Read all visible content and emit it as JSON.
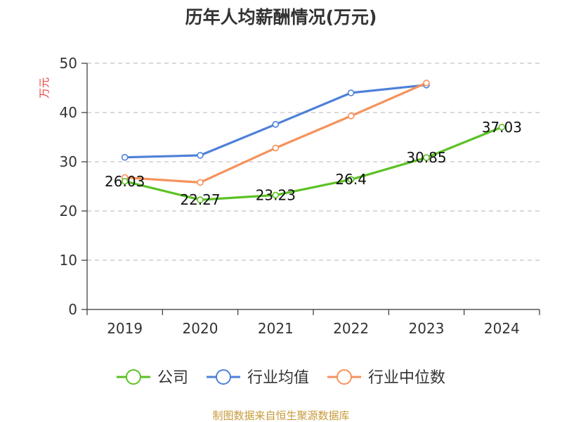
{
  "chart_data": {
    "type": "line",
    "title": "历年人均薪酬情况(万元)",
    "ylabel": "万元",
    "categories": [
      "2019",
      "2020",
      "2021",
      "2022",
      "2023",
      "2024"
    ],
    "ylim": [
      0,
      50
    ],
    "yticks": [
      0,
      10,
      20,
      30,
      40,
      50
    ],
    "grid": true,
    "legend_position": "bottom",
    "series": [
      {
        "name": "公司",
        "color": "#5cc125",
        "values": [
          26.03,
          22.27,
          23.23,
          26.4,
          30.85,
          37.03
        ],
        "labels": [
          "26.03",
          "22.27",
          "23.23",
          "26.4",
          "30.85",
          "37.03"
        ]
      },
      {
        "name": "行业均值",
        "color": "#4e80d9",
        "values": [
          30.9,
          31.3,
          37.6,
          44.0,
          45.6,
          null
        ]
      },
      {
        "name": "行业中位数",
        "color": "#f5925b",
        "values": [
          26.8,
          25.8,
          32.8,
          39.3,
          46.0,
          null
        ]
      }
    ],
    "source": "制图数据来自恒生聚源数据库"
  }
}
